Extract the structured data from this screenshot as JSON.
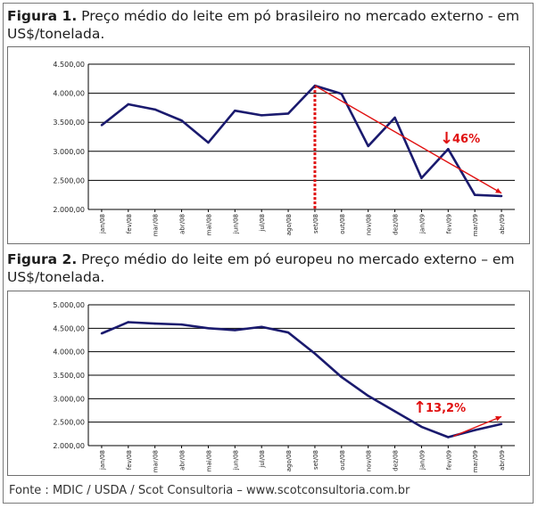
{
  "figure1": {
    "caption_label": "Figura 1.",
    "caption_text": "Preço médio do leite em pó brasileiro no mercado externo - em US$/tonelada."
  },
  "figure2": {
    "caption_label": "Figura 2.",
    "caption_text": "Preço médio do leite em pó europeu no mercado externo – em US$/tonelada."
  },
  "source": "Fonte : MDIC / USDA / Scot Consultoria – www.scotconsultoria.com.br",
  "colors": {
    "line": "#1a1a6e",
    "accent": "#e01010",
    "grid": "#000000"
  },
  "chart_data": [
    {
      "type": "line",
      "categories": [
        "jan/08",
        "fev/08",
        "mar/08",
        "abr/08",
        "mai/08",
        "jun/08",
        "jul/08",
        "ago/08",
        "set/08",
        "out/08",
        "nov/08",
        "dez/08",
        "jan/09",
        "fev/09",
        "mar/09",
        "abr/09"
      ],
      "values": [
        3450,
        3810,
        3720,
        3530,
        3150,
        3700,
        3620,
        3650,
        4130,
        3990,
        3090,
        3580,
        2540,
        3040,
        2250,
        2230
      ],
      "ylim": [
        2000,
        4500
      ],
      "yticks": [
        "2.000,00",
        "2.500,00",
        "3.000,00",
        "3.500,00",
        "4.000,00",
        "4.500,00"
      ],
      "grid": true,
      "annotation": {
        "text": "46%",
        "arrow": "↓"
      },
      "marker_index": 8,
      "trend": {
        "from": [
          8,
          4130
        ],
        "to": [
          15,
          2280
        ]
      }
    },
    {
      "type": "line",
      "categories": [
        "jan/08",
        "fev/08",
        "mar/08",
        "abr/08",
        "mai/08",
        "jun/08",
        "jul/08",
        "ago/08",
        "set/08",
        "out/08",
        "nov/08",
        "dez/08",
        "jan/09",
        "fev/09",
        "mar/09",
        "abr/09"
      ],
      "values": [
        4390,
        4630,
        4600,
        4580,
        4500,
        4460,
        4530,
        4410,
        3960,
        3460,
        3060,
        2730,
        2400,
        2180,
        2330,
        2460
      ],
      "ylim": [
        2000,
        5000
      ],
      "yticks": [
        "2.000,00",
        "2.500,00",
        "3.000,00",
        "3.500,00",
        "4.000,00",
        "4.500,00",
        "5.000,00"
      ],
      "grid": true,
      "annotation": {
        "text": "13,2%",
        "arrow": "↑"
      },
      "trend": {
        "from": [
          13.2,
          2200
        ],
        "to": [
          15,
          2620
        ]
      }
    }
  ]
}
